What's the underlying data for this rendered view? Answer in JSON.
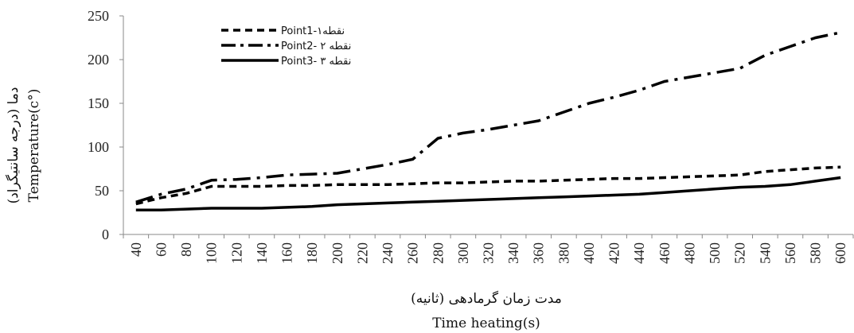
{
  "chart_data": {
    "type": "line",
    "x": [
      40,
      60,
      80,
      100,
      120,
      140,
      160,
      180,
      200,
      220,
      240,
      260,
      280,
      300,
      320,
      340,
      360,
      380,
      400,
      420,
      440,
      460,
      480,
      500,
      520,
      540,
      560,
      580,
      600
    ],
    "x_tick_labels": [
      "40",
      "60",
      "80",
      "100",
      "120",
      "140",
      "160",
      "180",
      "200",
      "220",
      "240",
      "260",
      "280",
      "300",
      "320",
      "340",
      "360",
      "380",
      "400",
      "420",
      "440",
      "460",
      "480",
      "500",
      "520",
      "540",
      "560",
      "580",
      "600"
    ],
    "y_ticks": [
      0,
      50,
      100,
      150,
      200,
      250
    ],
    "y_tick_labels": [
      "0",
      "50",
      "100",
      "150",
      "200",
      "250"
    ],
    "ylim": [
      0,
      250
    ],
    "grid": false,
    "legend_position": "top-left",
    "xlabel_fa": "مدت زمان گرمادهی (ثانیه)",
    "xlabel_en": "Time heating(s)",
    "ylabel_fa": "دما (درجه سانتیگراد)",
    "ylabel_en": "Temperature(c°)",
    "series": [
      {
        "name": "Point1-نقطه۱",
        "style": "dashed",
        "color": "#000000",
        "values": [
          35,
          42,
          47,
          55,
          55,
          55,
          56,
          56,
          57,
          57,
          57,
          58,
          59,
          59,
          60,
          61,
          61,
          62,
          63,
          64,
          64,
          65,
          66,
          67,
          68,
          72,
          74,
          76,
          77
        ]
      },
      {
        "name": "Point2- نقطه ۲",
        "style": "dash-dot",
        "color": "#000000",
        "values": [
          37,
          46,
          52,
          62,
          63,
          65,
          68,
          69,
          70,
          75,
          80,
          86,
          110,
          116,
          120,
          125,
          130,
          140,
          150,
          157,
          165,
          175,
          180,
          185,
          190,
          205,
          215,
          225,
          231
        ]
      },
      {
        "name": "Point3- نقطه ۳",
        "style": "solid",
        "color": "#000000",
        "values": [
          28,
          28,
          29,
          30,
          30,
          30,
          31,
          32,
          34,
          35,
          36,
          37,
          38,
          39,
          40,
          41,
          42,
          43,
          44,
          45,
          46,
          48,
          50,
          52,
          54,
          55,
          57,
          61,
          65
        ]
      }
    ]
  }
}
